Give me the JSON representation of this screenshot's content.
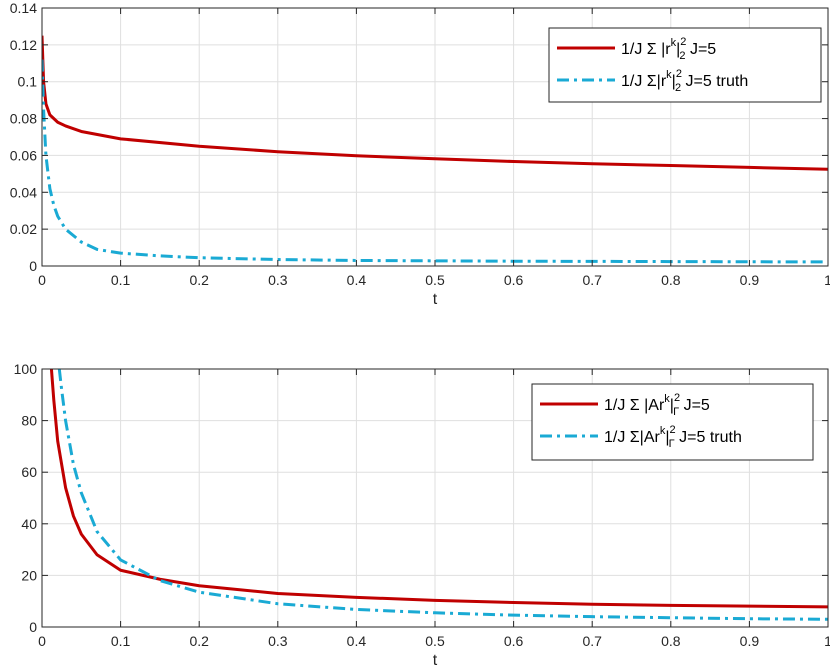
{
  "chart_data": [
    {
      "type": "line",
      "xlabel": "t",
      "ylabel": "",
      "xlim": [
        0,
        1
      ],
      "ylim": [
        0,
        0.14
      ],
      "xticks": [
        "0",
        "0.1",
        "0.2",
        "0.3",
        "0.4",
        "0.5",
        "0.6",
        "0.7",
        "0.8",
        "0.9",
        "1"
      ],
      "yticks": [
        "0",
        "0.02",
        "0.04",
        "0.06",
        "0.08",
        "0.1",
        "0.12",
        "0.14"
      ],
      "grid": true,
      "legend_position": "top-right",
      "series": [
        {
          "name": "1/J Σ |r^k|_2^2 J=5",
          "legend": {
            "prefix": "1/J Σ |r",
            "sup1": "k",
            "mid": "|",
            "sup2": "2",
            "sub": "2",
            "suffix": " J=5"
          },
          "color": "#c00000",
          "style": "solid",
          "x": [
            0,
            0.002,
            0.005,
            0.01,
            0.02,
            0.03,
            0.05,
            0.1,
            0.2,
            0.3,
            0.4,
            0.5,
            0.6,
            0.7,
            0.8,
            0.9,
            1.0
          ],
          "y": [
            0.125,
            0.1,
            0.088,
            0.082,
            0.078,
            0.076,
            0.073,
            0.069,
            0.065,
            0.062,
            0.0598,
            0.0582,
            0.0567,
            0.0555,
            0.0545,
            0.0535,
            0.0525
          ]
        },
        {
          "name": "1/J Σ|r^k|_2^2 J=5 truth",
          "legend": {
            "prefix": "1/J Σ|r",
            "sup1": "k",
            "mid": "|",
            "sup2": "2",
            "sub": "2",
            "suffix": " J=5 truth"
          },
          "color": "#1aaad4",
          "style": "dashdot",
          "x": [
            0,
            0.002,
            0.005,
            0.01,
            0.015,
            0.02,
            0.03,
            0.05,
            0.07,
            0.1,
            0.15,
            0.2,
            0.3,
            0.4,
            0.5,
            0.6,
            0.7,
            0.8,
            0.9,
            1.0
          ],
          "y": [
            0.112,
            0.085,
            0.06,
            0.042,
            0.033,
            0.027,
            0.02,
            0.013,
            0.009,
            0.007,
            0.0055,
            0.0045,
            0.0035,
            0.003,
            0.0028,
            0.0026,
            0.0025,
            0.0024,
            0.0023,
            0.0022
          ]
        }
      ]
    },
    {
      "type": "line",
      "xlabel": "t",
      "ylabel": "",
      "xlim": [
        0,
        1
      ],
      "ylim": [
        0,
        100
      ],
      "xticks": [
        "0",
        "0.1",
        "0.2",
        "0.3",
        "0.4",
        "0.5",
        "0.6",
        "0.7",
        "0.8",
        "0.9",
        "1"
      ],
      "yticks": [
        "0",
        "20",
        "40",
        "60",
        "80",
        "100"
      ],
      "grid": true,
      "legend_position": "top-right",
      "series": [
        {
          "name": "1/J Σ |Ar^k|_Γ^2 J=5",
          "legend": {
            "prefix": "1/J Σ |Ar",
            "sup1": "k",
            "mid": "|",
            "sup2": "2",
            "sub": "Γ",
            "suffix": " J=5"
          },
          "color": "#c00000",
          "style": "solid",
          "x": [
            0.012,
            0.015,
            0.02,
            0.03,
            0.04,
            0.05,
            0.07,
            0.1,
            0.15,
            0.2,
            0.3,
            0.4,
            0.5,
            0.6,
            0.7,
            0.8,
            0.9,
            1.0
          ],
          "y": [
            100,
            88,
            72,
            54,
            43,
            36,
            28,
            22,
            18.5,
            16,
            13,
            11.5,
            10.3,
            9.5,
            8.8,
            8.4,
            8.1,
            7.8
          ],
          "clip_top": true
        },
        {
          "name": "1/J Σ|Ar^k|_Γ^2 J=5 truth",
          "legend": {
            "prefix": "1/J Σ|Ar",
            "sup1": "k",
            "mid": "|",
            "sup2": "2",
            "sub": "Γ",
            "suffix": " J=5 truth"
          },
          "color": "#1aaad4",
          "style": "dashdot",
          "x": [
            0.022,
            0.025,
            0.03,
            0.04,
            0.05,
            0.07,
            0.1,
            0.15,
            0.2,
            0.3,
            0.4,
            0.5,
            0.6,
            0.7,
            0.8,
            0.9,
            1.0
          ],
          "y": [
            100,
            92,
            80,
            63,
            52,
            37,
            26,
            18,
            13.5,
            9,
            6.8,
            5.5,
            4.6,
            4,
            3.6,
            3.2,
            3
          ],
          "clip_top": true
        }
      ]
    }
  ]
}
